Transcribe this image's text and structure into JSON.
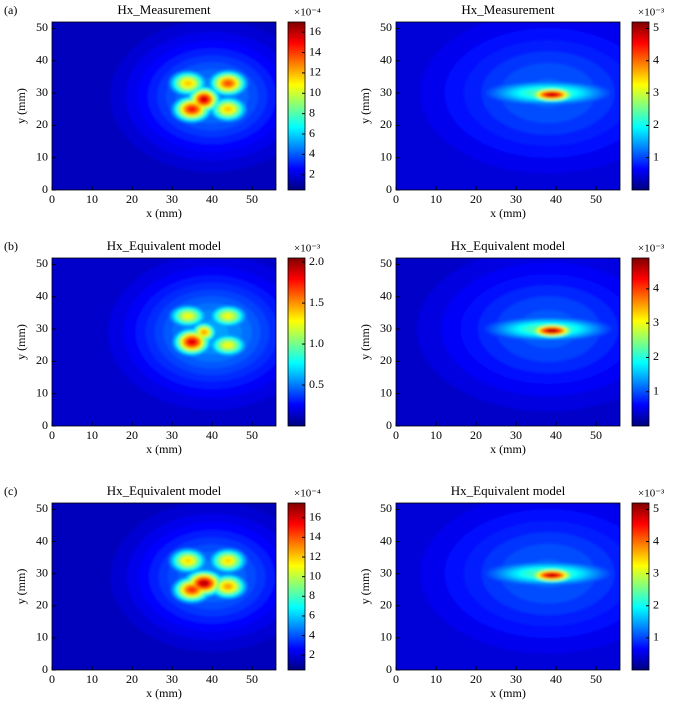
{
  "chart_data": [
    {
      "type": "heatmap",
      "panel": "(a)",
      "title": "Hx_Measurement",
      "xlabel": "x (mm)",
      "ylabel": "y (mm)",
      "xlim": [
        0,
        56
      ],
      "xticks": [
        0,
        10,
        20,
        30,
        40,
        50
      ],
      "ylim": [
        0,
        52
      ],
      "yticks": [
        0,
        10,
        20,
        30,
        40,
        50
      ],
      "zlim": [
        0.5,
        17
      ],
      "zticks": [
        2,
        4,
        6,
        8,
        10,
        12,
        14,
        16
      ],
      "zscale_label": "×10⁻⁴",
      "background": 1.5,
      "peaks": [
        {
          "x": 40,
          "y": 29,
          "value": 5,
          "sx": 13,
          "sy": 12
        },
        {
          "x": 34,
          "y": 33,
          "value": 12,
          "sx": 3,
          "sy": 2.5
        },
        {
          "x": 44,
          "y": 33,
          "value": 14,
          "sx": 3,
          "sy": 2.5
        },
        {
          "x": 35,
          "y": 25,
          "value": 15,
          "sx": 3,
          "sy": 2.5
        },
        {
          "x": 44,
          "y": 25,
          "value": 12,
          "sx": 3,
          "sy": 2.5
        },
        {
          "x": 38,
          "y": 28,
          "value": 16,
          "sx": 2.5,
          "sy": 2.5
        }
      ]
    },
    {
      "type": "heatmap",
      "title": "Hx_Measurement",
      "xlabel": "x (mm)",
      "ylabel": "y (mm)",
      "xlim": [
        0,
        56
      ],
      "xticks": [
        0,
        10,
        20,
        30,
        40,
        50
      ],
      "ylim": [
        0,
        52
      ],
      "yticks": [
        0,
        10,
        20,
        30,
        40,
        50
      ],
      "zlim": [
        0,
        5.2
      ],
      "zticks": [
        1,
        2,
        3,
        4,
        5
      ],
      "zscale_label": "×10⁻³",
      "background": 0.45,
      "peaks": [
        {
          "x": 38,
          "y": 30,
          "value": 1.2,
          "sx": 18,
          "sy": 14
        },
        {
          "x": 38,
          "y": 30,
          "value": 2.5,
          "sx": 10,
          "sy": 2.5
        },
        {
          "x": 39,
          "y": 29.5,
          "value": 5,
          "sx": 3.5,
          "sy": 1.4
        }
      ]
    },
    {
      "type": "heatmap",
      "panel": "(b)",
      "title": "Hx_Equivalent model",
      "xlabel": "x (mm)",
      "ylabel": "y (mm)",
      "xlim": [
        0,
        56
      ],
      "xticks": [
        0,
        10,
        20,
        30,
        40,
        50
      ],
      "ylim": [
        0,
        52
      ],
      "yticks": [
        0,
        10,
        20,
        30,
        40,
        50
      ],
      "zlim": [
        0,
        2.05
      ],
      "zticks": [
        0.5,
        {
          "value": 1,
          "label": "1.0"
        },
        1.5,
        {
          "value": 2,
          "label": "2.0"
        }
      ],
      "zscale_label": "×10⁻³",
      "background": 0.15,
      "peaks": [
        {
          "x": 40,
          "y": 29,
          "value": 0.6,
          "sx": 13,
          "sy": 12
        },
        {
          "x": 34,
          "y": 34,
          "value": 1.3,
          "sx": 3,
          "sy": 2.2
        },
        {
          "x": 44,
          "y": 34,
          "value": 1.3,
          "sx": 3,
          "sy": 2.2
        },
        {
          "x": 44,
          "y": 25,
          "value": 1.3,
          "sx": 3,
          "sy": 2.2
        },
        {
          "x": 35,
          "y": 26,
          "value": 1.9,
          "sx": 2.8,
          "sy": 2.5
        },
        {
          "x": 38,
          "y": 29,
          "value": 1.5,
          "sx": 2,
          "sy": 2
        }
      ]
    },
    {
      "type": "heatmap",
      "title": "Hx_Equivalent model",
      "xlabel": "x (mm)",
      "ylabel": "y (mm)",
      "xlim": [
        0,
        56
      ],
      "xticks": [
        0,
        10,
        20,
        30,
        40,
        50
      ],
      "ylim": [
        0,
        52
      ],
      "yticks": [
        0,
        10,
        20,
        30,
        40,
        50
      ],
      "zlim": [
        0,
        4.9
      ],
      "zticks": [
        1,
        2,
        3,
        4
      ],
      "zscale_label": "×10⁻³",
      "background": 0.35,
      "peaks": [
        {
          "x": 38,
          "y": 30,
          "value": 1.1,
          "sx": 18,
          "sy": 14
        },
        {
          "x": 38,
          "y": 30,
          "value": 2.4,
          "sx": 10,
          "sy": 2.5
        },
        {
          "x": 39,
          "y": 29.5,
          "value": 4.8,
          "sx": 3.5,
          "sy": 1.4
        }
      ]
    },
    {
      "type": "heatmap",
      "panel": "(c)",
      "title": "Hx_Equivalent model",
      "xlabel": "x (mm)",
      "ylabel": "y (mm)",
      "xlim": [
        0,
        56
      ],
      "xticks": [
        0,
        10,
        20,
        30,
        40,
        50
      ],
      "ylim": [
        0,
        52
      ],
      "yticks": [
        0,
        10,
        20,
        30,
        40,
        50
      ],
      "zlim": [
        0.5,
        17.5
      ],
      "zticks": [
        2,
        4,
        6,
        8,
        10,
        12,
        14,
        16
      ],
      "zscale_label": "×10⁻⁴",
      "background": 1.5,
      "peaks": [
        {
          "x": 40,
          "y": 29,
          "value": 5,
          "sx": 13,
          "sy": 12
        },
        {
          "x": 34,
          "y": 34,
          "value": 12,
          "sx": 3,
          "sy": 2.5
        },
        {
          "x": 44,
          "y": 34,
          "value": 12,
          "sx": 3,
          "sy": 2.5
        },
        {
          "x": 44,
          "y": 26,
          "value": 13,
          "sx": 3,
          "sy": 2.5
        },
        {
          "x": 35,
          "y": 25,
          "value": 15,
          "sx": 3,
          "sy": 2.5
        },
        {
          "x": 38,
          "y": 27,
          "value": 17,
          "sx": 3,
          "sy": 2.5
        }
      ]
    },
    {
      "type": "heatmap",
      "title": "Hx_Equivalent model",
      "xlabel": "x (mm)",
      "ylabel": "y (mm)",
      "xlim": [
        0,
        56
      ],
      "xticks": [
        0,
        10,
        20,
        30,
        40,
        50
      ],
      "ylim": [
        0,
        52
      ],
      "yticks": [
        0,
        10,
        20,
        30,
        40,
        50
      ],
      "zlim": [
        0,
        5.2
      ],
      "zticks": [
        1,
        2,
        3,
        4,
        5
      ],
      "zscale_label": "×10⁻³",
      "background": 0.45,
      "peaks": [
        {
          "x": 38,
          "y": 30,
          "value": 1.2,
          "sx": 18,
          "sy": 14
        },
        {
          "x": 38,
          "y": 30,
          "value": 2.5,
          "sx": 10,
          "sy": 2.5
        },
        {
          "x": 39,
          "y": 29.5,
          "value": 5,
          "sx": 3.5,
          "sy": 1.4
        }
      ]
    }
  ]
}
